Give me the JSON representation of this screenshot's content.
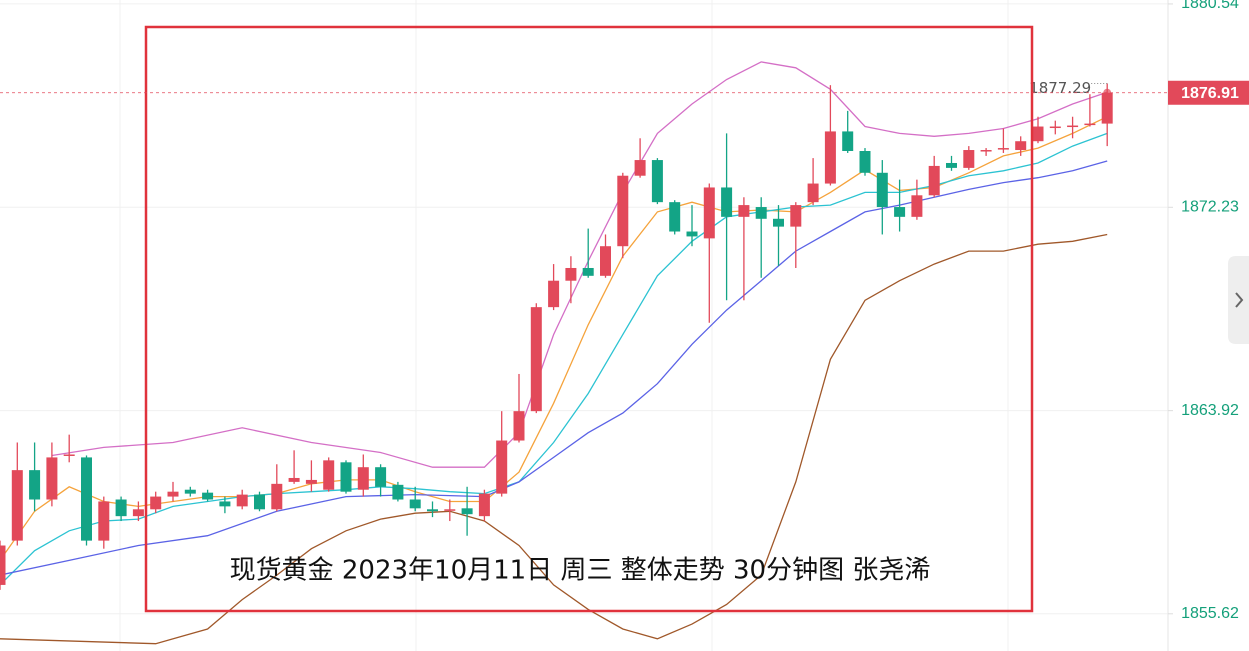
{
  "chart_data": {
    "type": "candlestick",
    "title": "现货黄金 2023年10月11日 周三 整体走势 30分钟图 张尧浠",
    "up_color": "#e2495a",
    "down_color": "#13a486",
    "ylim": [
      1854.1,
      1880.7
    ],
    "yticks": [
      1880.54,
      1872.23,
      1863.92,
      1855.62
    ],
    "grid": true,
    "last_price": 1876.91,
    "ohlc": [
      [
        1856.8,
        1858.61,
        1856.6,
        1858.41
      ],
      [
        1858.61,
        1862.62,
        1858.41,
        1861.49
      ],
      [
        1861.49,
        1862.62,
        1859.81,
        1860.29
      ],
      [
        1860.29,
        1862.62,
        1860.01,
        1862.01
      ],
      [
        1862.09,
        1862.94,
        1861.81,
        1862.13
      ],
      [
        1862.01,
        1862.09,
        1858.41,
        1858.61
      ],
      [
        1858.61,
        1860.41,
        1858.28,
        1860.21
      ],
      [
        1860.29,
        1860.41,
        1859.41,
        1859.61
      ],
      [
        1859.61,
        1860.21,
        1859.41,
        1859.89
      ],
      [
        1859.89,
        1860.61,
        1859.73,
        1860.41
      ],
      [
        1860.41,
        1861.01,
        1860.21,
        1860.61
      ],
      [
        1860.69,
        1860.81,
        1860.41,
        1860.53
      ],
      [
        1860.57,
        1860.69,
        1860.21,
        1860.29
      ],
      [
        1860.21,
        1860.41,
        1859.73,
        1860.01
      ],
      [
        1860.01,
        1860.69,
        1859.89,
        1860.49
      ],
      [
        1860.49,
        1860.61,
        1859.81,
        1859.89
      ],
      [
        1859.89,
        1861.73,
        1859.81,
        1860.93
      ],
      [
        1861.01,
        1862.3,
        1860.93,
        1861.17
      ],
      [
        1860.93,
        1861.89,
        1860.61,
        1861.09
      ],
      [
        1860.69,
        1862.01,
        1860.61,
        1861.89
      ],
      [
        1861.81,
        1861.89,
        1860.53,
        1860.61
      ],
      [
        1860.69,
        1862.13,
        1860.41,
        1861.61
      ],
      [
        1861.61,
        1861.73,
        1860.41,
        1860.81
      ],
      [
        1860.89,
        1861.01,
        1860.21,
        1860.29
      ],
      [
        1860.29,
        1860.81,
        1859.81,
        1859.93
      ],
      [
        1859.89,
        1860.21,
        1859.57,
        1859.81
      ],
      [
        1859.89,
        1860.29,
        1859.41,
        1859.89
      ],
      [
        1859.93,
        1860.81,
        1858.81,
        1859.69
      ],
      [
        1859.61,
        1860.69,
        1859.41,
        1860.53
      ],
      [
        1860.53,
        1863.9,
        1860.41,
        1862.7
      ],
      [
        1862.7,
        1865.42,
        1862.62,
        1863.9
      ],
      [
        1863.9,
        1868.31,
        1863.82,
        1868.15
      ],
      [
        1868.15,
        1869.91,
        1868.03,
        1869.23
      ],
      [
        1869.23,
        1870.23,
        1868.31,
        1869.75
      ],
      [
        1869.75,
        1871.36,
        1869.35,
        1869.43
      ],
      [
        1869.43,
        1871.12,
        1869.35,
        1870.64
      ],
      [
        1870.64,
        1873.64,
        1870.15,
        1873.52
      ],
      [
        1873.52,
        1875.05,
        1873.44,
        1874.16
      ],
      [
        1874.16,
        1874.24,
        1872.36,
        1872.44
      ],
      [
        1872.44,
        1872.52,
        1871.12,
        1871.24
      ],
      [
        1871.24,
        1872.32,
        1870.64,
        1871.04
      ],
      [
        1870.96,
        1873.2,
        1867.51,
        1873.04
      ],
      [
        1873.04,
        1875.25,
        1868.43,
        1871.84
      ],
      [
        1871.84,
        1872.64,
        1868.43,
        1872.32
      ],
      [
        1872.24,
        1872.64,
        1869.35,
        1871.76
      ],
      [
        1871.76,
        1872.32,
        1869.83,
        1871.44
      ],
      [
        1871.44,
        1872.44,
        1869.75,
        1872.32
      ],
      [
        1872.44,
        1874.24,
        1872.32,
        1873.2
      ],
      [
        1873.2,
        1877.22,
        1873.12,
        1875.33
      ],
      [
        1875.33,
        1876.17,
        1874.45,
        1874.53
      ],
      [
        1874.53,
        1874.65,
        1873.52,
        1873.64
      ],
      [
        1873.64,
        1874.16,
        1871.12,
        1872.24
      ],
      [
        1872.24,
        1873.36,
        1871.24,
        1871.84
      ],
      [
        1871.84,
        1873.36,
        1871.72,
        1872.72
      ],
      [
        1872.72,
        1874.33,
        1872.64,
        1873.92
      ],
      [
        1874.04,
        1874.33,
        1873.72,
        1873.84
      ],
      [
        1873.84,
        1874.73,
        1873.76,
        1874.57
      ],
      [
        1874.53,
        1874.65,
        1874.33,
        1874.57
      ],
      [
        1874.65,
        1875.45,
        1874.45,
        1874.65
      ],
      [
        1874.57,
        1875.13,
        1874.33,
        1874.93
      ],
      [
        1874.93,
        1875.93,
        1874.85,
        1875.53
      ],
      [
        1875.53,
        1875.77,
        1875.21,
        1875.53
      ],
      [
        1875.57,
        1875.93,
        1875.05,
        1875.57
      ],
      [
        1875.65,
        1876.85,
        1875.53,
        1875.65
      ],
      [
        1875.65,
        1877.29,
        1874.73,
        1876.91
      ]
    ],
    "series": [
      {
        "color": "#d46fc6",
        "x": [
          3,
          6,
          10,
          14,
          18,
          22,
          25,
          28,
          30,
          32,
          34,
          36,
          38,
          40,
          42,
          44,
          46,
          48,
          50,
          52,
          54,
          56,
          58,
          60,
          62,
          64
        ],
        "values": [
          1862.09,
          1862.42,
          1862.62,
          1863.22,
          1862.62,
          1862.21,
          1861.61,
          1861.61,
          1863.02,
          1867.03,
          1870.03,
          1872.84,
          1875.25,
          1876.45,
          1877.45,
          1878.17,
          1877.93,
          1877.05,
          1875.53,
          1875.25,
          1875.13,
          1875.25,
          1875.45,
          1875.85,
          1876.45,
          1876.93
        ]
      },
      {
        "color": "#a0582a",
        "x": [
          0,
          9,
          12,
          14,
          16,
          18,
          20,
          22,
          24,
          26,
          28,
          30,
          32,
          34,
          36,
          38,
          40,
          42,
          44,
          46,
          48,
          50,
          52,
          54,
          56,
          58,
          60,
          62,
          64
        ],
        "values": [
          1854.6,
          1854.4,
          1855.0,
          1856.2,
          1857.2,
          1858.28,
          1859.01,
          1859.49,
          1859.73,
          1859.81,
          1859.41,
          1858.41,
          1856.8,
          1855.8,
          1855.0,
          1854.6,
          1855.2,
          1856.0,
          1857.2,
          1861.01,
          1866.02,
          1868.43,
          1869.23,
          1869.91,
          1870.44,
          1870.44,
          1870.72,
          1870.84,
          1871.12
        ]
      },
      {
        "color": "#f5a33c",
        "x": [
          0,
          2,
          4,
          6,
          8,
          10,
          12,
          14,
          16,
          18,
          20,
          22,
          24,
          26,
          28,
          30,
          32,
          34,
          36,
          38,
          40,
          42,
          44,
          46,
          48,
          50,
          52,
          54,
          56,
          58,
          60,
          62,
          64
        ],
        "values": [
          1857.8,
          1859.81,
          1860.81,
          1860.21,
          1860.01,
          1860.21,
          1860.41,
          1860.41,
          1860.53,
          1860.93,
          1861.09,
          1861.09,
          1860.61,
          1860.21,
          1860.21,
          1861.41,
          1864.22,
          1867.43,
          1870.23,
          1872.04,
          1872.44,
          1872.04,
          1872.12,
          1872.04,
          1872.84,
          1873.76,
          1872.92,
          1873.04,
          1873.64,
          1874.33,
          1874.65,
          1875.25,
          1875.93
        ]
      },
      {
        "color": "#2cc3d2",
        "x": [
          0,
          2,
          4,
          6,
          8,
          10,
          12,
          14,
          16,
          18,
          20,
          22,
          24,
          26,
          28,
          30,
          32,
          34,
          36,
          38,
          40,
          42,
          44,
          46,
          48,
          50,
          52,
          54,
          56,
          58,
          60,
          62,
          64
        ],
        "values": [
          1856.8,
          1858.2,
          1859.01,
          1859.41,
          1859.49,
          1860.01,
          1860.21,
          1860.41,
          1860.53,
          1860.61,
          1860.69,
          1860.81,
          1860.73,
          1860.61,
          1860.53,
          1861.01,
          1862.62,
          1864.62,
          1867.03,
          1869.43,
          1870.84,
          1871.84,
          1872.04,
          1872.24,
          1872.32,
          1872.84,
          1872.84,
          1873.12,
          1873.52,
          1873.72,
          1874.04,
          1874.73,
          1875.25
        ]
      },
      {
        "color": "#5b63e6",
        "x": [
          0,
          4,
          8,
          12,
          16,
          20,
          24,
          28,
          30,
          32,
          34,
          36,
          38,
          40,
          42,
          44,
          46,
          48,
          50,
          52,
          54,
          56,
          58,
          60,
          62,
          64
        ],
        "values": [
          1857.2,
          1857.8,
          1858.41,
          1858.81,
          1859.81,
          1860.41,
          1860.49,
          1860.41,
          1861.01,
          1862.01,
          1863.02,
          1863.82,
          1865.02,
          1866.63,
          1868.03,
          1869.23,
          1870.44,
          1871.24,
          1872.04,
          1872.32,
          1872.64,
          1872.96,
          1873.24,
          1873.44,
          1873.72,
          1874.12
        ]
      }
    ]
  }
}
